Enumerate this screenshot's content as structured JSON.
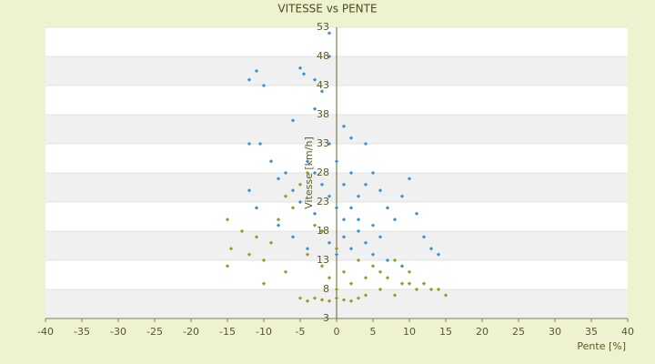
{
  "chart_data": {
    "type": "scatter",
    "title": "VITESSE vs PENTE",
    "x_label": "Pente [%]",
    "y_label": "Vitesse [km/h]",
    "xlim": [
      -40,
      40
    ],
    "xticks": [
      -40,
      -35,
      -30,
      -25,
      -20,
      -15,
      -10,
      -5,
      0,
      5,
      10,
      15,
      20,
      25,
      30,
      35,
      40
    ],
    "ylim": [
      3,
      53
    ],
    "yticks": [
      3,
      8,
      13,
      18,
      23,
      28,
      33,
      38,
      43,
      48,
      53
    ],
    "grid": true,
    "series": [
      {
        "color": "#3b8fd6",
        "x": [
          -11,
          -12,
          -10,
          -5,
          -4.5,
          -3,
          -2,
          -1,
          -1,
          -12,
          -10.5,
          -6,
          -3,
          1,
          2,
          4,
          -7,
          -12,
          -11,
          -9,
          -8,
          -6,
          -5,
          -4,
          -3,
          -2,
          -1,
          0,
          1,
          2,
          3,
          4,
          5,
          6,
          7,
          8,
          9,
          10,
          11,
          12,
          13,
          14,
          -2,
          -1,
          0,
          1,
          2,
          3,
          4,
          5,
          6,
          -4,
          -6,
          -8,
          -3,
          0,
          2,
          -1,
          1,
          3,
          5,
          7,
          9
        ],
        "values": [
          45.5,
          44,
          43,
          46,
          45,
          44,
          42,
          48,
          52,
          33,
          33,
          37,
          39,
          36,
          34,
          33,
          28,
          25,
          22,
          30,
          27,
          25,
          23,
          30,
          28,
          26,
          24,
          22,
          20,
          22,
          24,
          26,
          28,
          25,
          22,
          20,
          24,
          27,
          21,
          17,
          15,
          14,
          18,
          16,
          14,
          17,
          15,
          18,
          16,
          19,
          17,
          15,
          17,
          19,
          21,
          30,
          28,
          33,
          26,
          20,
          14,
          13,
          12
        ]
      },
      {
        "color": "#9a9a1e",
        "x": [
          -15,
          -14.5,
          -15,
          -13,
          -12,
          -11,
          -10,
          -9,
          -8,
          -7,
          -6,
          -5,
          -4,
          -3,
          -2,
          -1,
          0,
          1,
          2,
          3,
          4,
          5,
          6,
          7,
          8,
          9,
          10,
          11,
          12,
          13,
          14,
          15,
          -5,
          -4,
          -3,
          -2,
          -1,
          0,
          1,
          2,
          3,
          4,
          6,
          8,
          10,
          -10,
          -7,
          -4,
          -2,
          0
        ],
        "values": [
          12,
          15,
          20,
          18,
          14,
          17,
          13,
          16,
          20,
          24,
          22,
          26,
          28,
          19,
          12,
          10,
          8,
          11,
          9,
          13,
          10,
          12,
          11,
          10,
          13,
          9,
          11,
          8,
          9,
          8,
          8,
          7,
          6.5,
          6,
          6.5,
          6.2,
          6,
          6.5,
          6.2,
          6,
          6.5,
          7,
          8,
          7,
          9,
          9,
          11,
          14,
          18,
          15
        ]
      }
    ]
  }
}
